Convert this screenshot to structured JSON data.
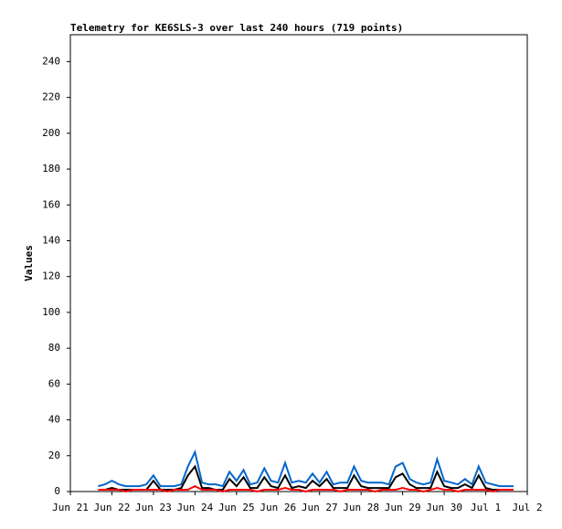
{
  "chart_data": {
    "type": "line",
    "title": "Telemetry for KE6SLS-3 over last 240 hours (719 points)",
    "ylabel": "Values",
    "x": [
      0.67,
      0.83,
      1.0,
      1.17,
      1.33,
      1.5,
      1.67,
      1.83,
      2.0,
      2.17,
      2.33,
      2.5,
      2.67,
      2.83,
      3.0,
      3.17,
      3.33,
      3.5,
      3.67,
      3.83,
      4.0,
      4.17,
      4.33,
      4.5,
      4.67,
      4.83,
      5.0,
      5.17,
      5.33,
      5.5,
      5.67,
      5.83,
      6.0,
      6.17,
      6.33,
      6.5,
      6.67,
      6.83,
      7.0,
      7.17,
      7.33,
      7.5,
      7.67,
      7.83,
      8.0,
      8.17,
      8.33,
      8.5,
      8.67,
      8.83,
      9.0,
      9.17,
      9.33,
      9.5,
      9.67,
      9.83,
      10.0,
      10.17,
      10.33,
      10.5,
      10.67
    ],
    "series": [
      {
        "color": "#0066cc",
        "values": [
          3,
          4,
          6,
          4,
          3,
          3,
          3,
          4,
          9,
          3,
          3,
          3,
          4,
          14,
          22,
          5,
          4,
          4,
          3,
          11,
          6,
          12,
          4,
          5,
          13,
          6,
          5,
          16,
          5,
          6,
          5,
          10,
          5,
          11,
          4,
          5,
          5,
          14,
          6,
          5,
          5,
          5,
          4,
          14,
          16,
          7,
          5,
          4,
          5,
          18,
          6,
          5,
          4,
          7,
          4,
          14,
          5,
          4,
          3,
          3,
          3
        ]
      },
      {
        "color": "#000000",
        "values": [
          1,
          1,
          2,
          1,
          1,
          1,
          1,
          1,
          6,
          1,
          1,
          1,
          2,
          9,
          14,
          2,
          2,
          1,
          1,
          7,
          3,
          8,
          2,
          2,
          8,
          3,
          2,
          9,
          2,
          3,
          2,
          6,
          3,
          7,
          2,
          2,
          2,
          9,
          3,
          2,
          2,
          2,
          2,
          8,
          10,
          4,
          2,
          2,
          2,
          11,
          3,
          2,
          2,
          4,
          2,
          9,
          2,
          1,
          1,
          1,
          1
        ]
      },
      {
        "color": "#ff0000",
        "values": [
          1,
          1,
          1,
          1,
          0,
          1,
          1,
          1,
          1,
          1,
          0,
          1,
          1,
          1,
          3,
          1,
          1,
          1,
          0,
          1,
          1,
          1,
          1,
          0,
          1,
          1,
          1,
          2,
          1,
          1,
          0,
          1,
          1,
          1,
          1,
          0,
          1,
          1,
          1,
          1,
          0,
          1,
          1,
          1,
          2,
          1,
          1,
          0,
          1,
          2,
          1,
          1,
          0,
          1,
          1,
          1,
          1,
          0,
          1,
          1,
          1
        ]
      }
    ],
    "xlim": [
      0,
      11
    ],
    "xticks": [
      {
        "value": 0,
        "label": "Jun 21"
      },
      {
        "value": 1,
        "label": "Jun 22"
      },
      {
        "value": 2,
        "label": "Jun 23"
      },
      {
        "value": 3,
        "label": "Jun 24"
      },
      {
        "value": 4,
        "label": "Jun 25"
      },
      {
        "value": 5,
        "label": "Jun 26"
      },
      {
        "value": 6,
        "label": "Jun 27"
      },
      {
        "value": 7,
        "label": "Jun 28"
      },
      {
        "value": 8,
        "label": "Jun 29"
      },
      {
        "value": 9,
        "label": "Jun 30"
      },
      {
        "value": 10,
        "label": "Jul 1"
      },
      {
        "value": 11,
        "label": "Jul 2"
      }
    ],
    "ylim": [
      0,
      255
    ],
    "yticks": [
      0,
      20,
      40,
      60,
      80,
      100,
      120,
      140,
      160,
      180,
      200,
      220,
      240
    ],
    "grid": false
  }
}
